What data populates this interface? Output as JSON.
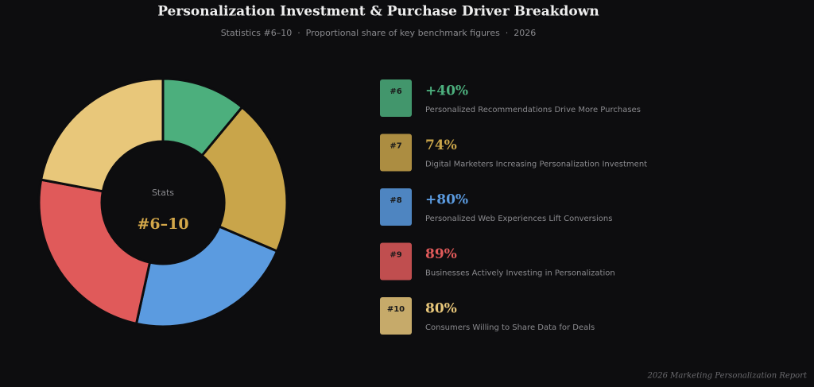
{
  "chart_data": {
    "type": "pie",
    "title": "Personalization Investment & Purchase Driver Breakdown",
    "subtitle": "Statistics #6–10  ·  Proportional share of key benchmark figures  ·  2026",
    "center_label": "Stats",
    "center_value": "#6–10",
    "badges": [
      "#6",
      "#7",
      "#8",
      "#9",
      "#10"
    ],
    "categories": [
      "Personalized Recommendations Drive More Purchases",
      "Digital Marketers Increasing Personalization Investment",
      "Personalized Web Experiences Lift Conversions",
      "Businesses Actively Investing in Personalization",
      "Consumers Willing to Share Data for Deals"
    ],
    "values": [
      40,
      74,
      80,
      89,
      80
    ],
    "value_labels": [
      "+40%",
      "74%",
      "+80%",
      "89%",
      "80%"
    ],
    "colors": [
      "#4caf7d",
      "#c9a54a",
      "#5b9be0",
      "#e05a5a",
      "#e8c77a"
    ],
    "footnote": "2026 Marketing Personalization Report"
  }
}
